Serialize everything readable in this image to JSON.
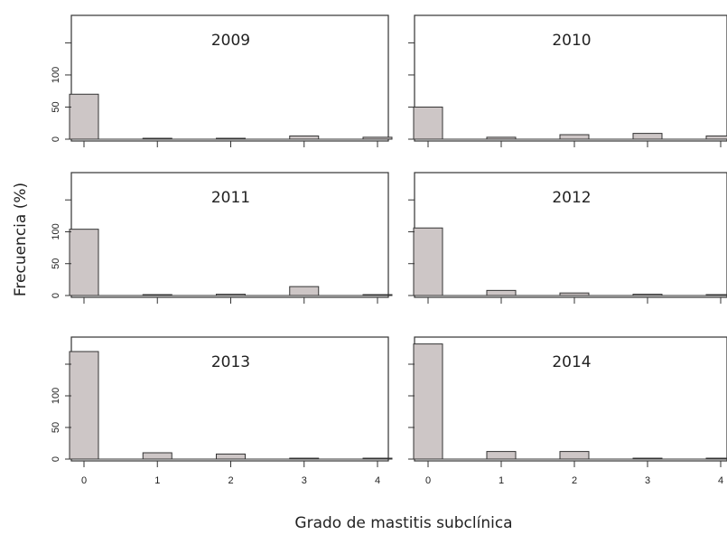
{
  "figure": {
    "ylabel": "Frecuencia (%)",
    "xlabel": "Grado de mastitis subclínica"
  },
  "colors": {
    "bar_fill": "#cdc6c6",
    "bar_stroke": "#333333",
    "frame": "#333333"
  },
  "chart_data": [
    {
      "type": "bar",
      "title": "2009",
      "categories": [
        "0",
        "1",
        "2",
        "3",
        "4"
      ],
      "values": [
        70,
        0,
        1,
        5,
        3
      ],
      "ylim": [
        0,
        190
      ],
      "yticks": [
        0,
        50,
        100
      ],
      "show_x_tick_labels": false
    },
    {
      "type": "bar",
      "title": "2010",
      "categories": [
        "0",
        "1",
        "2",
        "3",
        "4"
      ],
      "values": [
        50,
        3,
        7,
        9,
        5
      ],
      "ylim": [
        0,
        190
      ],
      "yticks": [
        0,
        50,
        100
      ],
      "show_x_tick_labels": false
    },
    {
      "type": "bar",
      "title": "2011",
      "categories": [
        "0",
        "1",
        "2",
        "3",
        "4"
      ],
      "values": [
        104,
        0,
        2,
        14,
        0
      ],
      "ylim": [
        0,
        190
      ],
      "yticks": [
        0,
        50,
        100
      ],
      "show_x_tick_labels": false
    },
    {
      "type": "bar",
      "title": "2012",
      "categories": [
        "0",
        "1",
        "2",
        "3",
        "4"
      ],
      "values": [
        106,
        8,
        4,
        2,
        0
      ],
      "ylim": [
        0,
        190
      ],
      "yticks": [
        0,
        50,
        100
      ],
      "show_x_tick_labels": false
    },
    {
      "type": "bar",
      "title": "2013",
      "categories": [
        "0",
        "1",
        "2",
        "3",
        "4"
      ],
      "values": [
        170,
        10,
        8,
        0,
        0
      ],
      "ylim": [
        0,
        190
      ],
      "yticks": [
        100,
        50,
        0
      ],
      "show_x_tick_labels": true
    },
    {
      "type": "bar",
      "title": "2014",
      "categories": [
        "0",
        "1",
        "2",
        "3",
        "4"
      ],
      "values": [
        182,
        12,
        12,
        1,
        0
      ],
      "ylim": [
        0,
        190
      ],
      "yticks": [
        100,
        50,
        0
      ],
      "show_x_tick_labels": true
    }
  ]
}
